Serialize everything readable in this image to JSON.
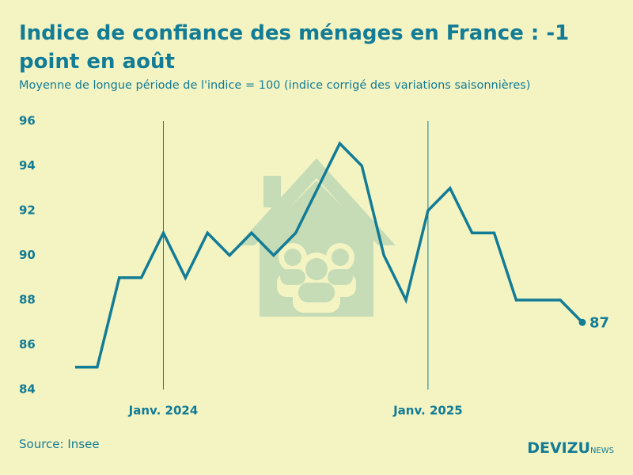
{
  "chart_data": {
    "type": "line",
    "title": "Indice de confiance des ménages en France : -1 point en août",
    "subtitle": "Moyenne de longue période de l'indice = 100 (indice corrigé des variations saisonnières)",
    "source": "Source: Insee",
    "logo": {
      "main": "DEVIZU",
      "suffix": "NEWS"
    },
    "categories": [
      null,
      null,
      null,
      null,
      "Janv. 2024",
      null,
      null,
      null,
      null,
      null,
      null,
      null,
      null,
      null,
      null,
      null,
      "Janv. 2025",
      null,
      null,
      null,
      null,
      null,
      null,
      null
    ],
    "values": [
      85,
      85,
      89,
      89,
      91,
      89,
      91,
      90,
      91,
      90,
      91,
      93,
      95,
      94,
      90,
      88,
      92,
      93,
      91,
      91,
      88,
      88,
      88,
      87
    ],
    "color": "#127b95",
    "ylim": [
      84,
      96
    ],
    "yticks": [
      84,
      86,
      88,
      90,
      92,
      94,
      96
    ],
    "grid": false
  }
}
